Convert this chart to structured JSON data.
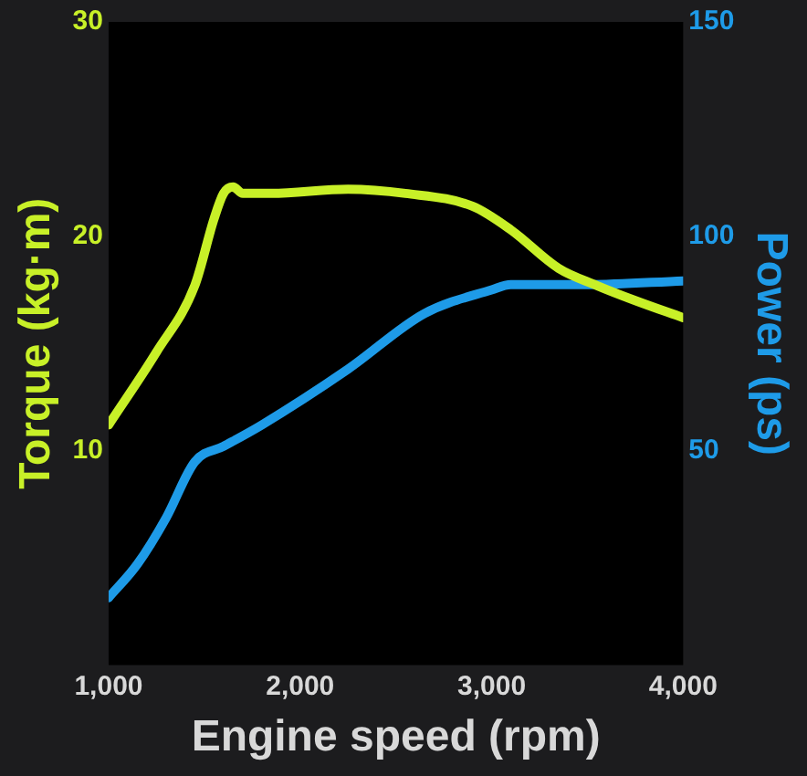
{
  "chart_data": {
    "type": "line",
    "xlabel": "Engine speed (rpm)",
    "ylabel": "Torque (kg·m)",
    "y2label": "Power (ps)",
    "series": [
      {
        "color": "#c8f028",
        "axis": "y",
        "x": [
          1000,
          1250,
          1450,
          1550,
          1600,
          1650,
          1700,
          1850,
          2250,
          2550,
          2900,
          3100,
          3350,
          3550,
          3750,
          4000
        ],
        "values": [
          11.2,
          14.6,
          17.7,
          20.8,
          22.0,
          22.3,
          22.0,
          22.0,
          22.2,
          22.0,
          21.4,
          20.3,
          18.5,
          17.7,
          17.0,
          16.2
        ]
      },
      {
        "color": "#1e9be8",
        "axis": "y2",
        "x": [
          1000,
          1150,
          1300,
          1450,
          1600,
          1800,
          2250,
          2650,
          3000,
          3100,
          3500,
          4000
        ],
        "values": [
          15.7,
          23.5,
          34.3,
          47.4,
          51,
          56,
          69,
          82,
          87.5,
          88.7,
          88.7,
          89.6
        ]
      }
    ],
    "xlim": [
      1000,
      4000
    ],
    "xticks": [
      {
        "value": 1000,
        "label": "1,000"
      },
      {
        "value": 2000,
        "label": "2,000"
      },
      {
        "value": 3000,
        "label": "3,000"
      },
      {
        "value": 4000,
        "label": "4,000"
      }
    ],
    "ylim": [
      0,
      30
    ],
    "yticks": [
      10,
      20,
      30
    ],
    "y2lim": [
      0,
      150
    ],
    "y2ticks": [
      50,
      100,
      150
    ],
    "grid": false,
    "legend": false,
    "marker": "none",
    "line_style": "solid"
  }
}
